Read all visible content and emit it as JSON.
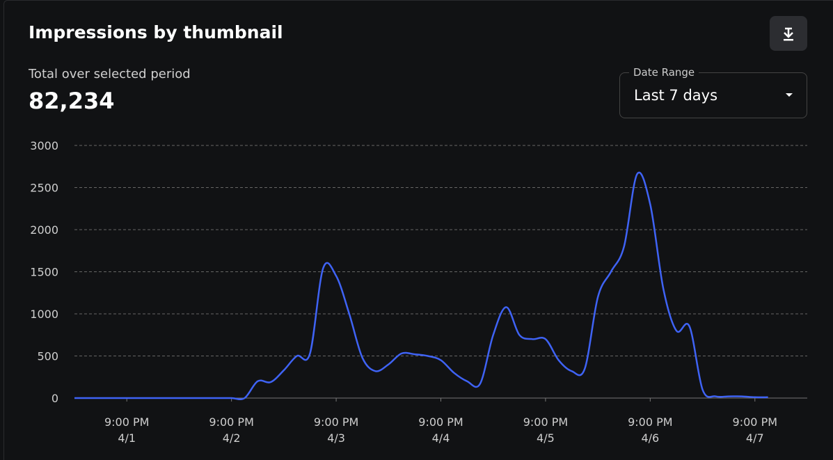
{
  "header": {
    "title": "Impressions by thumbnail",
    "subtitle": "Total over selected period",
    "total": "82,234"
  },
  "date_range": {
    "label": "Date Range",
    "value": "Last 7 days"
  },
  "chart_data": {
    "type": "line",
    "color": "#3f63f5",
    "grid": true,
    "x": [
      "4/1 9:00 AM",
      "4/1 12:00 PM",
      "4/1 3:00 PM",
      "4/1 6:00 PM",
      "4/1 9:00 PM",
      "4/2 12:00 AM",
      "4/2 3:00 AM",
      "4/2 6:00 AM",
      "4/2 9:00 AM",
      "4/2 12:00 PM",
      "4/2 3:00 PM",
      "4/2 6:00 PM",
      "4/2 9:00 PM",
      "4/3 12:00 AM",
      "4/3 3:00 AM",
      "4/3 6:00 AM",
      "4/3 9:00 AM",
      "4/3 12:00 PM",
      "4/3 3:00 PM",
      "4/3 6:00 PM",
      "4/3 9:00 PM",
      "4/4 12:00 AM",
      "4/4 3:00 AM",
      "4/4 6:00 AM",
      "4/4 9:00 AM",
      "4/4 12:00 PM",
      "4/4 3:00 PM",
      "4/4 6:00 PM",
      "4/4 9:00 PM",
      "4/5 12:00 AM",
      "4/5 3:00 AM",
      "4/5 6:00 AM",
      "4/5 9:00 AM",
      "4/5 12:00 PM",
      "4/5 3:00 PM",
      "4/5 6:00 PM",
      "4/5 9:00 PM",
      "4/6 12:00 AM",
      "4/6 3:00 AM",
      "4/6 6:00 AM",
      "4/6 9:00 AM",
      "4/6 12:00 PM",
      "4/6 3:00 PM",
      "4/6 6:00 PM",
      "4/6 9:00 PM",
      "4/7 12:00 AM",
      "4/7 3:00 AM",
      "4/7 6:00 AM",
      "4/7 9:00 AM",
      "4/7 12:00 PM",
      "4/7 3:00 PM",
      "4/7 6:00 PM",
      "4/7 9:00 PM",
      "4/8 12:00 AM"
    ],
    "values": [
      0,
      0,
      0,
      0,
      0,
      0,
      0,
      0,
      0,
      0,
      0,
      0,
      0,
      0,
      200,
      190,
      330,
      500,
      530,
      1540,
      1450,
      1000,
      480,
      320,
      400,
      530,
      520,
      500,
      450,
      300,
      200,
      170,
      750,
      1080,
      750,
      700,
      700,
      450,
      320,
      350,
      1200,
      1500,
      1800,
      2660,
      2300,
      1300,
      800,
      850,
      100,
      20,
      20,
      20,
      10,
      10
    ],
    "xlim": [
      "4/1 9:00 AM",
      "4/8 9:00 AM"
    ],
    "xticks": [
      {
        "value": "4/1 9:00 PM",
        "label": [
          "9:00 PM",
          "4/1"
        ]
      },
      {
        "value": "4/2 9:00 PM",
        "label": [
          "9:00 PM",
          "4/2"
        ]
      },
      {
        "value": "4/3 9:00 PM",
        "label": [
          "9:00 PM",
          "4/3"
        ]
      },
      {
        "value": "4/4 9:00 PM",
        "label": [
          "9:00 PM",
          "4/4"
        ]
      },
      {
        "value": "4/5 9:00 PM",
        "label": [
          "9:00 PM",
          "4/5"
        ]
      },
      {
        "value": "4/6 9:00 PM",
        "label": [
          "9:00 PM",
          "4/6"
        ]
      },
      {
        "value": "4/7 9:00 PM",
        "label": [
          "9:00 PM",
          "4/7"
        ]
      }
    ],
    "ylim": [
      0,
      3000
    ],
    "yticks": [
      0,
      500,
      1000,
      1500,
      2000,
      2500,
      3000
    ]
  }
}
